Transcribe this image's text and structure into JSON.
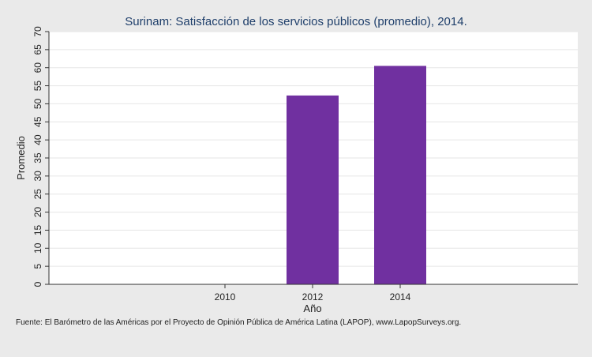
{
  "chart_data": {
    "type": "bar",
    "title": "Surinam: Satisfacción de los servicios públicos (promedio), 2014.",
    "xlabel": "Año",
    "ylabel": "Promedio",
    "categories": [
      "2010",
      "2012",
      "2014"
    ],
    "values": [
      null,
      52.3,
      60.5
    ],
    "ylim": [
      0,
      70
    ],
    "yticks": [
      0,
      5,
      10,
      15,
      20,
      25,
      30,
      35,
      40,
      45,
      50,
      55,
      60,
      65,
      70
    ],
    "grid": true,
    "bar_color": "#7030a0",
    "source": "Fuente: El Barómetro de las Américas por el Proyecto de Opinión Pública de América Latina (LAPOP), www.LapopSurveys.org."
  },
  "colors": {
    "background": "#eaeaea",
    "plot_background": "#ffffff",
    "grid": "#e6e6e6",
    "title": "#1f3f6b"
  }
}
